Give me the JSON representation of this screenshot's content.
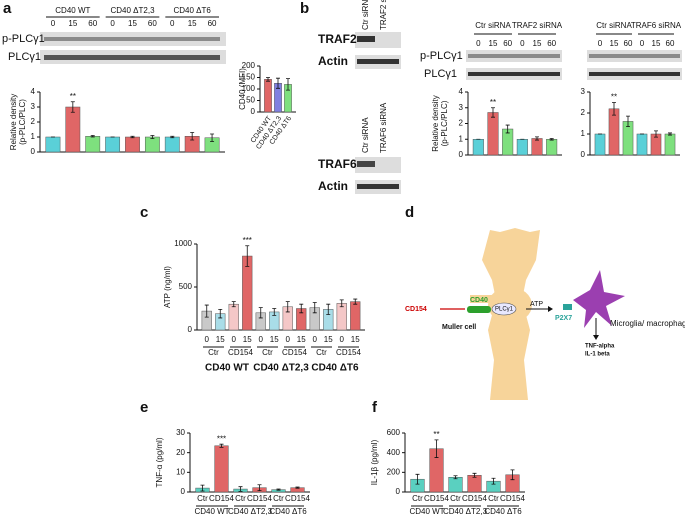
{
  "panel_labels": [
    "a",
    "b",
    "c",
    "d",
    "e",
    "f"
  ],
  "blots": {
    "a": {
      "rows": [
        "p-PLCγ1",
        "PLCγ1"
      ]
    },
    "b_traf2": {
      "lanes": [
        "Ctr siRNA",
        "TRAF2 siRNA"
      ],
      "rows": [
        "TRAF2",
        "Actin"
      ]
    },
    "b_traf6": {
      "lanes": [
        "Ctr siRNA",
        "TRAF6 siRNA"
      ],
      "rows": [
        "TRAF6",
        "Actin"
      ]
    },
    "b_plc2": {
      "rows": [
        "p-PLCγ1",
        "PLCγ1"
      ]
    }
  },
  "diagram": {
    "ligand": "CD154",
    "receptor": "CD40",
    "enzyme": "PLCγ1",
    "messenger": "ATP",
    "channel": "P2X7",
    "cell": "Muller cell",
    "target": "Microglia/ macrophage",
    "outputs": [
      "TNF-alpha",
      "IL-1 beta"
    ]
  },
  "chart_data": [
    {
      "type": "bar",
      "ylabel": [
        "Relative density",
        "(p-PLC/PLC)"
      ],
      "categories": [
        "0",
        "15",
        "60",
        "0",
        "15",
        "60",
        "0",
        "15",
        "60"
      ],
      "groups": [
        "CD40 WT",
        "CD40 ΔT2,3",
        "CD40 ΔT6"
      ],
      "values": [
        1,
        3.0,
        1.05,
        1,
        1.0,
        1.0,
        1.0,
        1.05,
        0.95
      ],
      "errors": [
        0,
        0.35,
        0.05,
        0,
        0.05,
        0.1,
        0.05,
        0.25,
        0.25
      ],
      "colors": [
        "#5ad0d8",
        "#e06666",
        "#7ee07e",
        "#5ad0d8",
        "#e06666",
        "#7ee07e",
        "#5ad0d8",
        "#e06666",
        "#7ee07e"
      ],
      "significance": [
        null,
        "**",
        null,
        null,
        null,
        null,
        null,
        null,
        null
      ],
      "ylim": [
        0,
        4
      ],
      "yticks": [
        0,
        1,
        2,
        3,
        4
      ]
    },
    {
      "type": "bar",
      "ylabel": [
        "CD40 (MFI)"
      ],
      "categories": [
        "CD40 WT",
        "CD40 ΔT2,3",
        "CD40 ΔT6"
      ],
      "values": [
        142,
        125,
        120
      ],
      "errors": [
        8,
        22,
        25
      ],
      "colors": [
        "#e06666",
        "#8080e0",
        "#7ee07e"
      ],
      "ylim": [
        0,
        200
      ],
      "yticks": [
        0,
        50,
        100,
        150,
        200
      ]
    },
    {
      "type": "bar",
      "ylabel": [
        "Relative density",
        "(p-PLC/PLC)"
      ],
      "categories": [
        "0",
        "15",
        "60",
        "0",
        "15",
        "60"
      ],
      "groups": [
        "Ctr siRNA",
        "TRAF2 siRNA"
      ],
      "values": [
        1,
        2.7,
        1.65,
        1,
        1.05,
        1.0
      ],
      "errors": [
        0,
        0.3,
        0.25,
        0,
        0.1,
        0.05
      ],
      "colors": [
        "#5ad0d8",
        "#e06666",
        "#7ee07e",
        "#5ad0d8",
        "#e06666",
        "#7ee07e"
      ],
      "significance": [
        null,
        "**",
        null,
        null,
        null,
        null
      ],
      "ylim": [
        0,
        4
      ],
      "yticks": [
        0,
        1,
        2,
        3,
        4
      ]
    },
    {
      "type": "bar",
      "categories": [
        "0",
        "15",
        "60",
        "0",
        "15",
        "60"
      ],
      "groups": [
        "Ctr siRNA",
        "TRAF6 siRNA"
      ],
      "values": [
        1,
        2.2,
        1.6,
        1,
        1.0,
        1.0
      ],
      "errors": [
        0,
        0.3,
        0.25,
        0,
        0.15,
        0.05
      ],
      "colors": [
        "#5ad0d8",
        "#e06666",
        "#7ee07e",
        "#5ad0d8",
        "#e06666",
        "#7ee07e"
      ],
      "significance": [
        null,
        "**",
        null,
        null,
        null,
        null
      ],
      "ylim": [
        0,
        3
      ],
      "yticks": [
        0,
        1,
        2,
        3
      ]
    },
    {
      "type": "bar",
      "ylabel": [
        "ATP (ng/ml)"
      ],
      "categories": [
        "0",
        "15",
        "0",
        "15",
        "0",
        "15",
        "0",
        "15",
        "0",
        "15",
        "0",
        "15"
      ],
      "subgroups": [
        "Ctr",
        "CD154",
        "Ctr",
        "CD154",
        "Ctr",
        "CD154"
      ],
      "groups": [
        "CD40 WT",
        "CD40 ΔT2,3",
        "CD40 ΔT6"
      ],
      "values": [
        220,
        190,
        300,
        860,
        200,
        210,
        270,
        250,
        260,
        240,
        310,
        330
      ],
      "errors": [
        70,
        50,
        30,
        120,
        60,
        40,
        60,
        50,
        60,
        60,
        40,
        30
      ],
      "colors": [
        "#c9c9c9",
        "#a9dde8",
        "#f4c7c7",
        "#e06666",
        "#c9c9c9",
        "#a9dde8",
        "#f4c7c7",
        "#e06666",
        "#c9c9c9",
        "#a9dde8",
        "#f4c7c7",
        "#e06666"
      ],
      "significance": [
        null,
        null,
        null,
        "***",
        null,
        null,
        null,
        null,
        null,
        null,
        null,
        null
      ],
      "ylim": [
        0,
        1000
      ],
      "yticks": [
        0,
        500,
        1000
      ]
    },
    {
      "type": "bar",
      "ylabel": [
        "TNF-α (pg/ml)"
      ],
      "categories": [
        "Ctr",
        "CD154",
        "Ctr",
        "CD154",
        "Ctr",
        "CD154"
      ],
      "groups": [
        "CD40 WT",
        "CD40 ΔT2,3",
        "CD40 ΔT6"
      ],
      "values": [
        2,
        23.5,
        1.5,
        2.2,
        1.2,
        2.2
      ],
      "errors": [
        1.5,
        0.8,
        1.2,
        1.5,
        0.3,
        0.3
      ],
      "colors": [
        "#5ad0c0",
        "#e06666",
        "#5ad0c0",
        "#e06666",
        "#5ad0c0",
        "#e06666"
      ],
      "significance": [
        null,
        "***",
        null,
        null,
        null,
        null
      ],
      "ylim": [
        0,
        30
      ],
      "yticks": [
        0,
        10,
        20,
        30
      ]
    },
    {
      "type": "bar",
      "ylabel": [
        "IL-1β (pg/ml)"
      ],
      "categories": [
        "Ctr",
        "CD154",
        "Ctr",
        "CD154",
        "Ctr",
        "CD154"
      ],
      "groups": [
        "CD40 WT",
        "CD40 ΔT2,3",
        "CD40 ΔT6"
      ],
      "values": [
        130,
        440,
        150,
        170,
        110,
        175
      ],
      "errors": [
        50,
        90,
        15,
        20,
        30,
        50
      ],
      "colors": [
        "#5ad0c0",
        "#e06666",
        "#5ad0c0",
        "#e06666",
        "#5ad0c0",
        "#e06666"
      ],
      "significance": [
        null,
        "**",
        null,
        null,
        null,
        null
      ],
      "ylim": [
        0,
        600
      ],
      "yticks": [
        0,
        200,
        400,
        600
      ]
    }
  ]
}
